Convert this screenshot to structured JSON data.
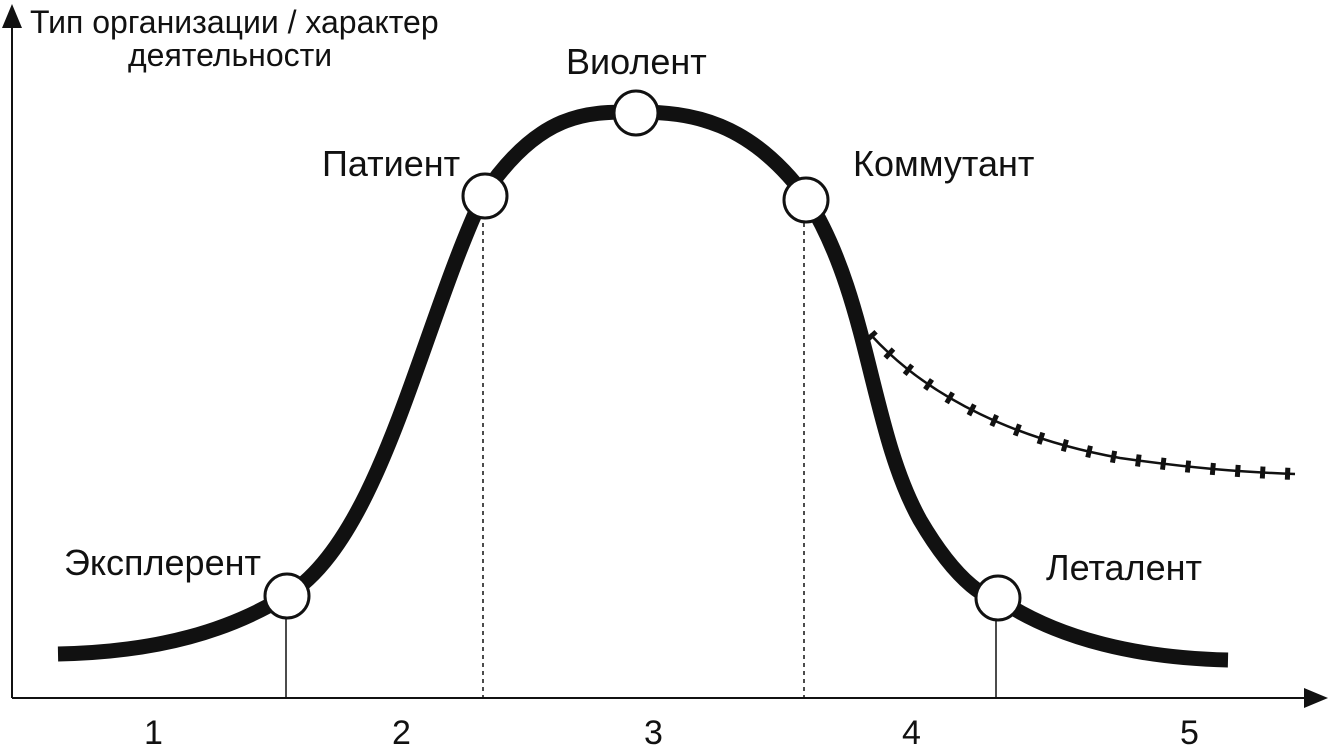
{
  "diagram": {
    "y_axis_label_line1": "Тип организации / характер",
    "y_axis_label_line2": "деятельности",
    "stages": [
      {
        "id": "explerent",
        "label": "Эксплерент"
      },
      {
        "id": "patient",
        "label": "Патиент"
      },
      {
        "id": "violent",
        "label": "Виолент"
      },
      {
        "id": "commutant",
        "label": "Коммутант"
      },
      {
        "id": "letalent",
        "label": "Леталент"
      }
    ],
    "phases": [
      "1",
      "2",
      "3",
      "4",
      "5"
    ],
    "colors": {
      "line": "#111111",
      "node_fill": "#ffffff",
      "background": "#ffffff"
    }
  }
}
